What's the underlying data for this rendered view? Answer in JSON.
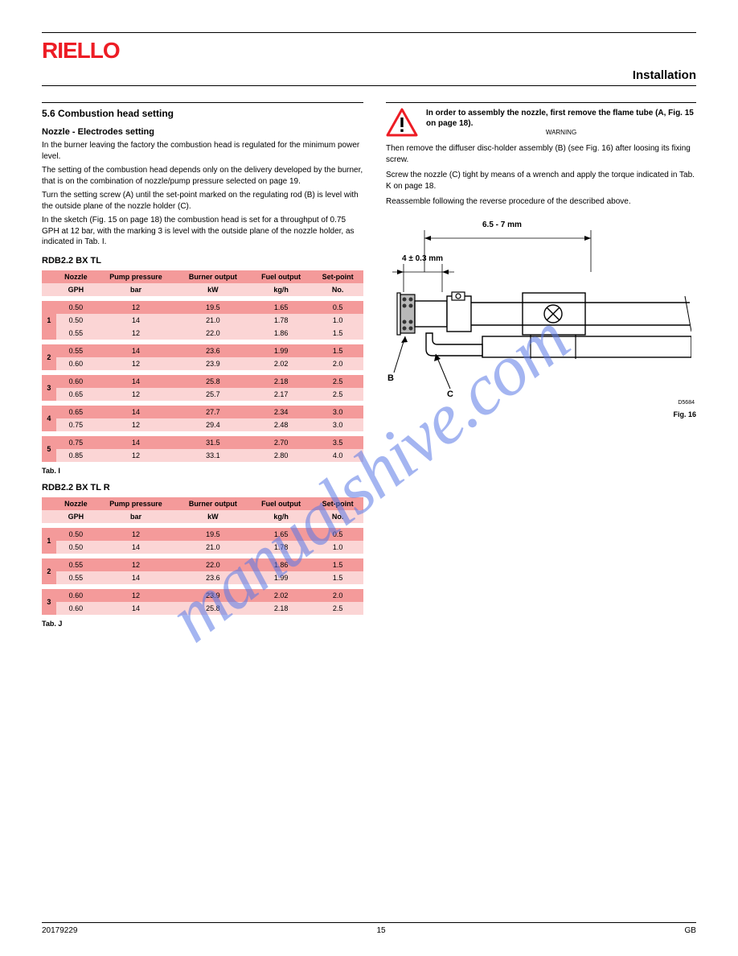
{
  "logo_text": "RIELLO",
  "logo_color": "#ed1c24",
  "section_title": "Installation",
  "left": {
    "sec_num_title": "5.6      Combustion head setting",
    "sub_title": "Nozzle - Electrodes setting",
    "intro": "In the burner leaving the factory the combustion head is regulated for the minimum power level.",
    "intro2": "The setting of the combustion head depends only on the delivery developed by the burner, that is on the combination of nozzle/pump pressure selected on page 19.",
    "intro3": "Turn the setting screw (A) until the set-point marked on the regulating rod (B) is level with the outside plane of the nozzle holder (C).",
    "intro4": "In the sketch (Fig. 15 on page 18) the combustion head is set for a throughput of 0.75 GPH at 12 bar, with the marking 3 is level with the outside plane of the nozzle holder, as indicated in Tab. I.",
    "table_i_title": "RDB2.2 BX TL",
    "table_i": {
      "header": [
        "",
        "Nozzle",
        "Pump pressure",
        "Burner output",
        "Fuel output",
        "Set-point"
      ],
      "units": [
        "",
        "GPH",
        "bar",
        "kW",
        "kg/h",
        "No."
      ],
      "rows": [
        [
          "1",
          "0.50",
          "12",
          "19.5",
          "1.65",
          "0.5"
        ],
        [
          "",
          "0.50",
          "14",
          "21.0",
          "1.78",
          "1.0"
        ],
        [
          "",
          "0.55",
          "12",
          "22.0",
          "1.86",
          "1.5"
        ],
        [
          "2",
          "0.55",
          "14",
          "23.6",
          "1.99",
          "1.5"
        ],
        [
          "",
          "0.60",
          "12",
          "23.9",
          "2.02",
          "2.0"
        ],
        [
          "3",
          "0.60",
          "14",
          "25.8",
          "2.18",
          "2.5"
        ],
        [
          "",
          "0.65",
          "12",
          "25.7",
          "2.17",
          "2.5"
        ],
        [
          "4",
          "0.65",
          "14",
          "27.7",
          "2.34",
          "3.0"
        ],
        [
          "",
          "0.75",
          "12",
          "29.4",
          "2.48",
          "3.0"
        ],
        [
          "5",
          "0.75",
          "14",
          "31.5",
          "2.70",
          "3.5"
        ],
        [
          "",
          "0.85",
          "12",
          "33.1",
          "2.80",
          "4.0"
        ]
      ],
      "caption": "Tab. I"
    },
    "table_j_title": "RDB2.2 BX TL R",
    "table_j": {
      "header": [
        "",
        "Nozzle",
        "Pump pressure",
        "Burner output",
        "Fuel output",
        "Set-point"
      ],
      "units": [
        "",
        "GPH",
        "bar",
        "kW",
        "kg/h",
        "No."
      ],
      "rows": [
        [
          "1",
          "0.50",
          "12",
          "19.5",
          "1.65",
          "0.5"
        ],
        [
          "",
          "0.50",
          "14",
          "21.0",
          "1.78",
          "1.0"
        ],
        [
          "2",
          "0.55",
          "12",
          "22.0",
          "1.86",
          "1.5"
        ],
        [
          "",
          "0.55",
          "14",
          "23.6",
          "1.99",
          "1.5"
        ],
        [
          "3",
          "0.60",
          "12",
          "23.9",
          "2.02",
          "2.0"
        ],
        [
          "",
          "0.60",
          "14",
          "25.8",
          "2.18",
          "2.5"
        ]
      ],
      "caption": "Tab. J"
    }
  },
  "right": {
    "warning_label": "WARNING",
    "warning_text": "In order to assembly the nozzle, first remove the flame tube (A, Fig. 15 on page 18).",
    "body1": "Then remove the diffuser disc-holder assembly (B) (see Fig. 16) after loosing its fixing screw.",
    "body2": "Screw the nozzle (C) tight by means of a wrench and apply the torque indicated in Tab. K on page 18.",
    "body3": "Reassemble following the reverse procedure of the described above.",
    "diagram": {
      "dim1_label": "4 ± 0.3 mm",
      "dim2_label": "6.5 - 7 mm",
      "callout1": "B",
      "callout2": "C",
      "code": "D5684",
      "caption": "Fig. 16"
    }
  },
  "watermark": "manualshive.com",
  "footer": {
    "page": "15",
    "doc": "20179229",
    "lang": "GB"
  },
  "colors": {
    "brand_red": "#ed1c24",
    "tbl_dark": "#f49a9a",
    "tbl_light": "#fbd5d5",
    "watermark": "rgba(90,120,230,0.55)"
  }
}
